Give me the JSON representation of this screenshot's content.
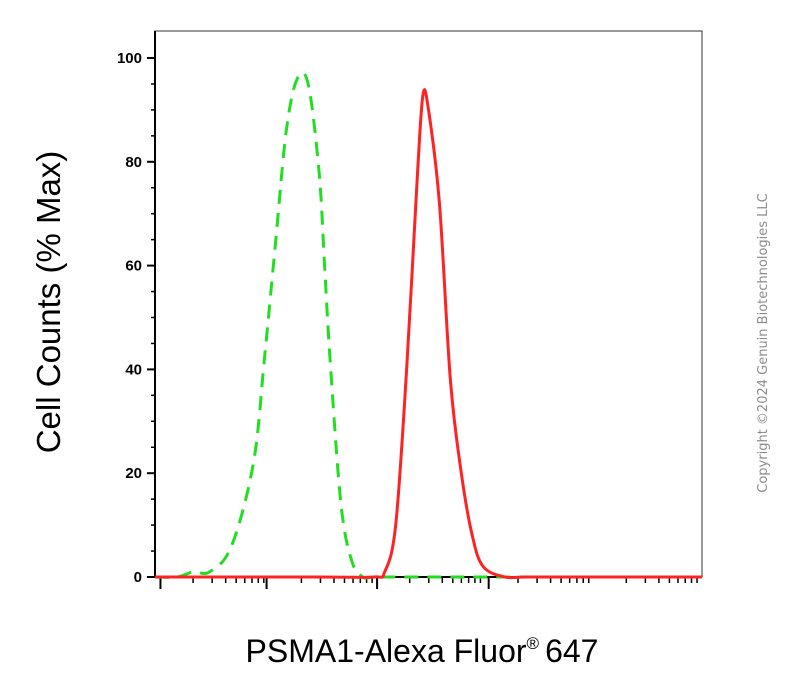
{
  "chart_data": {
    "type": "line",
    "xlabel": "PSMA1-Alexa Fluor",
    "xlabel_superscript": "®",
    "xlabel_suffix": "647",
    "ylabel": "Cell Counts (% Max)",
    "xscale": "log",
    "xlim": [
      0,
      5.0
    ],
    "ylim": [
      0,
      100
    ],
    "yticks": [
      0,
      20,
      40,
      60,
      80,
      100
    ],
    "ytick_labels": [
      "0",
      "20",
      "40",
      "60",
      "80",
      "100"
    ],
    "grid": false,
    "legend": "none",
    "series": [
      {
        "color": "#22dd22",
        "style": "dashed",
        "x": [
          0.0,
          0.2,
          0.35,
          0.5,
          0.7,
          0.9,
          1.0,
          1.1,
          1.2,
          1.3,
          1.4,
          1.5,
          1.55,
          1.6,
          1.7,
          1.8,
          1.9,
          2.0,
          2.2,
          2.5,
          3.0,
          4.0,
          5.0
        ],
        "y": [
          0,
          0,
          1,
          1,
          6,
          22,
          42,
          64,
          86,
          96,
          95,
          78,
          60,
          42,
          14,
          3,
          0,
          0,
          0,
          0,
          0,
          0,
          0
        ]
      },
      {
        "color": "#ff2222",
        "style": "solid",
        "x": [
          0.0,
          1.5,
          2.0,
          2.1,
          2.2,
          2.3,
          2.4,
          2.45,
          2.5,
          2.6,
          2.7,
          2.8,
          2.9,
          3.0,
          3.2,
          3.4,
          4.0,
          5.0
        ],
        "y": [
          0,
          0,
          0,
          1,
          10,
          40,
          78,
          93,
          90,
          72,
          38,
          20,
          8,
          2,
          0,
          0,
          0,
          0
        ]
      }
    ]
  },
  "copyright": "Copyright ©2024 Genuin Biotechnologies LLC"
}
